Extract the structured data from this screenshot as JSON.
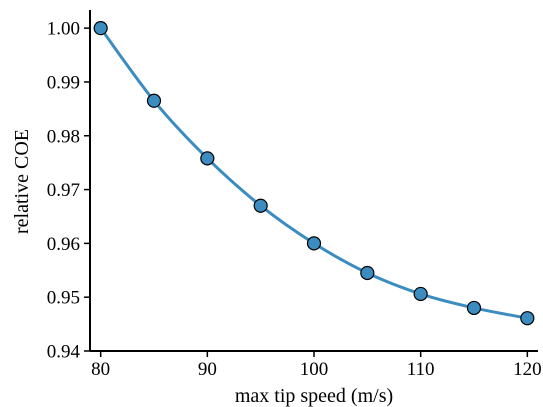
{
  "chart_data": {
    "type": "line",
    "title": "",
    "xlabel": "max tip speed (m/s)",
    "ylabel": "relative COE",
    "xlim": [
      79,
      121
    ],
    "ylim": [
      0.94,
      1.003
    ],
    "xticks": [
      80,
      90,
      100,
      110,
      120
    ],
    "yticks": [
      0.94,
      0.95,
      0.96,
      0.97,
      0.98,
      0.99,
      1.0
    ],
    "xtick_labels": [
      "80",
      "90",
      "100",
      "110",
      "120"
    ],
    "ytick_labels": [
      "0.94",
      "0.95",
      "0.96",
      "0.97",
      "0.98",
      "0.99",
      "1.00"
    ],
    "grid": false,
    "legend": "none",
    "series": [
      {
        "x": [
          80,
          85,
          90,
          95,
          100,
          105,
          110,
          115,
          120
        ],
        "y": [
          1.0,
          0.9865,
          0.9758,
          0.967,
          0.96,
          0.9545,
          0.9506,
          0.948,
          0.9461
        ],
        "color": "#3a8cc1",
        "marker": "circle"
      }
    ]
  }
}
